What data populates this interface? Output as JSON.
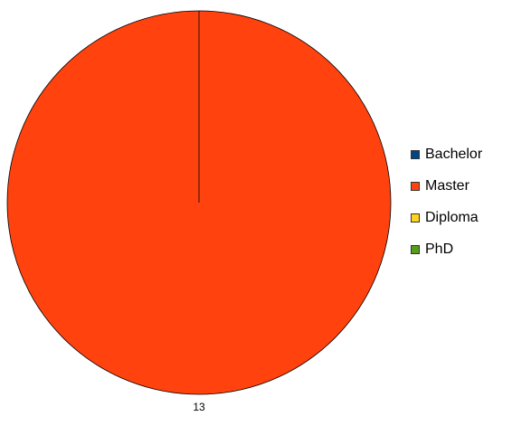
{
  "chart_data": {
    "type": "pie",
    "categories": [
      "Bachelor",
      "Master",
      "Diploma",
      "PhD"
    ],
    "values": [
      0,
      13,
      0,
      0
    ],
    "data_labels": [
      "",
      "13",
      "",
      ""
    ],
    "colors": [
      "#004586",
      "#ff420e",
      "#ffd320",
      "#579d1c"
    ],
    "title": "",
    "legend_position": "right"
  }
}
